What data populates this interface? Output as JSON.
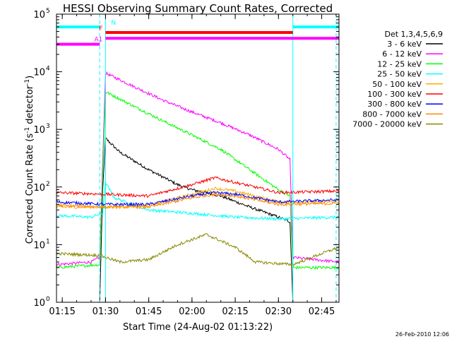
{
  "chart_data": {
    "type": "line",
    "title": "HESSI Observing Summary Count Rates, Corrected",
    "xlabel": "Start Time (24-Aug-02 01:13:22)",
    "ylabel": "Corrected Count Rate (s⁻¹ detector⁻¹)",
    "ylabel_main": "Corrected Count Rate (s",
    "ylabel_sup1": "-1",
    "ylabel_mid": " detector",
    "ylabel_sup2": "-1",
    "ylabel_end": ")",
    "yscale": "log",
    "ylim": [
      1,
      100000
    ],
    "xlim": [
      "01:13",
      "02:51"
    ],
    "x_ticks": [
      "01:15",
      "01:30",
      "01:45",
      "02:00",
      "02:15",
      "02:30",
      "02:45"
    ],
    "y_ticks": [
      {
        "base": "10",
        "exp": "0"
      },
      {
        "base": "10",
        "exp": "1"
      },
      {
        "base": "10",
        "exp": "2"
      },
      {
        "base": "10",
        "exp": "3"
      },
      {
        "base": "10",
        "exp": "4"
      },
      {
        "base": "10",
        "exp": "5"
      }
    ],
    "legend_title": "Det 1,3,4,5,6,9",
    "legend_position": "right",
    "series": [
      {
        "name": "3 - 6 keV",
        "color": "#000000",
        "points": [
          [
            "01:28",
            1
          ],
          [
            "01:29",
            80
          ],
          [
            "01:30",
            700
          ],
          [
            "01:35",
            400
          ],
          [
            "01:45",
            200
          ],
          [
            "01:55",
            110
          ],
          [
            "02:00",
            90
          ],
          [
            "02:10",
            70
          ],
          [
            "02:20",
            45
          ],
          [
            "02:30",
            30
          ],
          [
            "02:34",
            25
          ],
          [
            "02:35",
            1
          ]
        ]
      },
      {
        "name": "6 - 12 keV",
        "color": "#ff00ff",
        "points": [
          [
            "01:13",
            4.5
          ],
          [
            "01:25",
            5
          ],
          [
            "01:28",
            6
          ],
          [
            "01:30",
            9500
          ],
          [
            "01:40",
            5500
          ],
          [
            "01:50",
            3200
          ],
          [
            "02:00",
            2000
          ],
          [
            "02:10",
            1300
          ],
          [
            "02:20",
            800
          ],
          [
            "02:30",
            450
          ],
          [
            "02:34",
            300
          ],
          [
            "02:35",
            6
          ],
          [
            "02:51",
            5
          ]
        ]
      },
      {
        "name": "12 - 25 keV",
        "color": "#00ff00",
        "points": [
          [
            "01:13",
            4
          ],
          [
            "01:28",
            4.5
          ],
          [
            "01:30",
            4500
          ],
          [
            "01:40",
            2500
          ],
          [
            "01:50",
            1400
          ],
          [
            "02:00",
            800
          ],
          [
            "02:10",
            450
          ],
          [
            "02:20",
            200
          ],
          [
            "02:30",
            90
          ],
          [
            "02:34",
            70
          ],
          [
            "02:35",
            4
          ],
          [
            "02:51",
            4
          ]
        ]
      },
      {
        "name": "25 - 50 keV",
        "color": "#00ffff",
        "points": [
          [
            "01:13",
            32
          ],
          [
            "01:25",
            30
          ],
          [
            "01:29",
            35
          ],
          [
            "01:30",
            120
          ],
          [
            "01:33",
            65
          ],
          [
            "01:45",
            40
          ],
          [
            "02:00",
            35
          ],
          [
            "02:15",
            30
          ],
          [
            "02:30",
            28
          ],
          [
            "02:51",
            30
          ]
        ]
      },
      {
        "name": "50 - 100 keV",
        "color": "#ffaa00",
        "points": [
          [
            "01:13",
            45
          ],
          [
            "01:30",
            45
          ],
          [
            "01:45",
            48
          ],
          [
            "02:00",
            75
          ],
          [
            "02:08",
            95
          ],
          [
            "02:15",
            85
          ],
          [
            "02:30",
            55
          ],
          [
            "02:51",
            55
          ]
        ]
      },
      {
        "name": "100 - 300 keV",
        "color": "#ff0000",
        "points": [
          [
            "01:13",
            80
          ],
          [
            "01:30",
            75
          ],
          [
            "01:45",
            70
          ],
          [
            "02:00",
            110
          ],
          [
            "02:08",
            145
          ],
          [
            "02:15",
            120
          ],
          [
            "02:30",
            80
          ],
          [
            "02:51",
            85
          ]
        ]
      },
      {
        "name": "300 - 800 keV",
        "color": "#0000ff",
        "points": [
          [
            "01:13",
            55
          ],
          [
            "01:30",
            50
          ],
          [
            "01:45",
            50
          ],
          [
            "02:00",
            70
          ],
          [
            "02:08",
            80
          ],
          [
            "02:15",
            75
          ],
          [
            "02:30",
            55
          ],
          [
            "02:51",
            60
          ]
        ]
      },
      {
        "name": "800 - 7000 keV",
        "color": "#ff8800",
        "points": [
          [
            "01:13",
            48
          ],
          [
            "01:30",
            45
          ],
          [
            "01:45",
            45
          ],
          [
            "02:00",
            65
          ],
          [
            "02:08",
            75
          ],
          [
            "02:15",
            70
          ],
          [
            "02:30",
            50
          ],
          [
            "02:51",
            52
          ]
        ]
      },
      {
        "name": "7000 - 20000 keV",
        "color": "#888800",
        "points": [
          [
            "01:13",
            7
          ],
          [
            "01:28",
            6.5
          ],
          [
            "01:35",
            5
          ],
          [
            "01:45",
            5.5
          ],
          [
            "01:55",
            10
          ],
          [
            "02:05",
            15
          ],
          [
            "02:15",
            9
          ],
          [
            "02:22",
            5
          ],
          [
            "02:35",
            4.5
          ],
          [
            "02:45",
            7
          ],
          [
            "02:51",
            9
          ]
        ]
      }
    ],
    "annotations": [
      {
        "label": "N",
        "color": "#00ffff",
        "segments": [
          [
            "01:13",
            "01:28",
            60000
          ],
          [
            "02:35",
            "02:51",
            60000
          ]
        ]
      },
      {
        "label": "F",
        "color": "#ff0000",
        "segments": [
          [
            "01:30",
            "02:35",
            48000
          ]
        ]
      },
      {
        "label": "A1",
        "color": "#ff00ff",
        "segments": [
          [
            "01:13",
            "01:28",
            30000
          ],
          [
            "01:30",
            "02:51",
            38000
          ]
        ]
      }
    ],
    "vertical_markers": [
      {
        "x": "01:28",
        "color": "#00ffff",
        "style": "dashed"
      },
      {
        "x": "01:30",
        "color": "#00ffff",
        "style": "solid"
      },
      {
        "x": "02:35",
        "color": "#00ffff",
        "style": "solid"
      },
      {
        "x": "02:50",
        "color": "#00ffff",
        "style": "dashed"
      }
    ],
    "grid": false
  },
  "footer_date": "26-Feb-2010 12:06"
}
